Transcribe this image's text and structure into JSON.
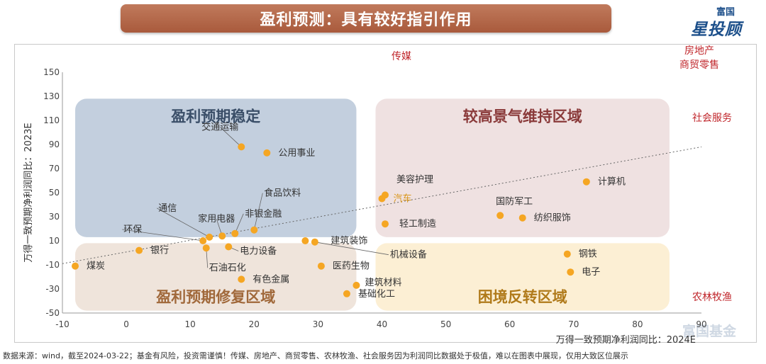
{
  "header": {
    "title": "盈利预测：具有较好指引作用"
  },
  "logo": {
    "top": "富国",
    "main": "星投顾",
    "color": "#1c4f8a"
  },
  "watermark": "富国基金",
  "footnote": "数据来源：wind，截至2024-03-22；基金有风险，投资需谨慎！传媒、房地产、商贸零售、农林牧渔、社会服务因为利润同比数据处于极值，难以在图表中展现，仅用大致区位展示",
  "chart_data": {
    "type": "scatter",
    "xlabel": "万得一致预期净利润同比：2024E",
    "ylabel": "万得一致预期净利润同比：2023E",
    "xlim": [
      -10,
      90
    ],
    "ylim": [
      -50,
      150
    ],
    "xticks": [
      "-10",
      "0",
      "10",
      "20",
      "30",
      "40",
      "50",
      "60",
      "70",
      "80",
      "90"
    ],
    "yticks": [
      "150",
      "130",
      "110",
      "90",
      "70",
      "50",
      "30",
      "10",
      "-10",
      "-30",
      "-50"
    ],
    "point_color": "#f5a623",
    "trendline": "dotted",
    "points": [
      {
        "name": "交通运输",
        "x": 18,
        "y": 88
      },
      {
        "name": "公用事业",
        "x": 22,
        "y": 83
      },
      {
        "name": "美容护理",
        "x": 40.5,
        "y": 48
      },
      {
        "name": "汽车",
        "x": 40,
        "y": 45
      },
      {
        "name": "计算机",
        "x": 72,
        "y": 59
      },
      {
        "name": "国防军工",
        "x": 58.5,
        "y": 31
      },
      {
        "name": "纺织服饰",
        "x": 62,
        "y": 29
      },
      {
        "name": "轻工制造",
        "x": 40.5,
        "y": 24
      },
      {
        "name": "食品饮料",
        "x": 20,
        "y": 19
      },
      {
        "name": "非银金融",
        "x": 17,
        "y": 16
      },
      {
        "name": "家用电器",
        "x": 15,
        "y": 14
      },
      {
        "name": "通信",
        "x": 13,
        "y": 13
      },
      {
        "name": "环保",
        "x": 12,
        "y": 10
      },
      {
        "name": "电力设备",
        "x": 16,
        "y": 5
      },
      {
        "name": "石油石化",
        "x": 12.5,
        "y": 4
      },
      {
        "name": "银行",
        "x": 2,
        "y": 2
      },
      {
        "name": "煤炭",
        "x": -8,
        "y": -11
      },
      {
        "name": "建筑装饰",
        "x": 28,
        "y": 10
      },
      {
        "name": "机械设备",
        "x": 29.5,
        "y": 9
      },
      {
        "name": "医药生物",
        "x": 30.5,
        "y": -11
      },
      {
        "name": "有色金属",
        "x": 18,
        "y": -22
      },
      {
        "name": "建筑材料",
        "x": 36,
        "y": -27
      },
      {
        "name": "基础化工",
        "x": 34.5,
        "y": -34
      },
      {
        "name": "钢铁",
        "x": 69,
        "y": -1
      },
      {
        "name": "电子",
        "x": 69.5,
        "y": -16
      }
    ],
    "regions": [
      {
        "name": "盈利预期稳定",
        "color": "#b8c7d8",
        "text_color": "#3a4e68",
        "x1": -8,
        "x2": 36,
        "y1": 13,
        "y2": 128
      },
      {
        "name": "较高景气维持区域",
        "color": "#ecdcdc",
        "text_color": "#8a3a3a",
        "x1": 39,
        "x2": 85,
        "y1": 13,
        "y2": 128
      },
      {
        "name": "盈利预期修复区域",
        "color": "#ecdfd5",
        "text_color": "#a0683a",
        "x1": -8,
        "x2": 36,
        "y1": -48,
        "y2": 8
      },
      {
        "name": "困境反转区域",
        "color": "#fbeccc",
        "text_color": "#b07a1a",
        "x1": 39,
        "x2": 85,
        "y1": -48,
        "y2": 8
      }
    ],
    "extreme_labels": [
      "传媒",
      "房地产",
      "商贸零售",
      "社会服务",
      "农林牧渔"
    ],
    "extreme_color": "#c0262b"
  }
}
